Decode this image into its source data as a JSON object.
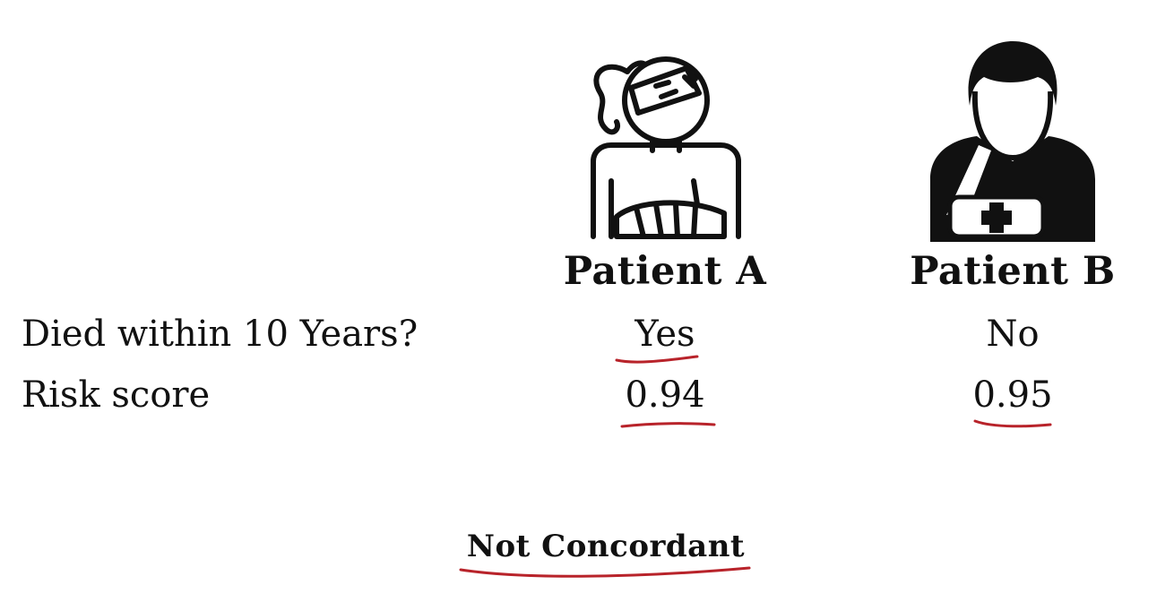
{
  "patients": [
    {
      "icon": "patient-woman-bandaged-icon",
      "label": "Patient A",
      "died_within_10_years": "Yes",
      "risk_score": "0.94"
    },
    {
      "icon": "patient-man-sling-icon",
      "label": "Patient B",
      "died_within_10_years": "No",
      "risk_score": "0.95"
    }
  ],
  "rows": {
    "died_label": "Died within 10 Years?",
    "risk_label": "Risk score"
  },
  "conclusion": "Not Concordant",
  "colors": {
    "text": "#111111",
    "annotation": "#b8232a"
  }
}
